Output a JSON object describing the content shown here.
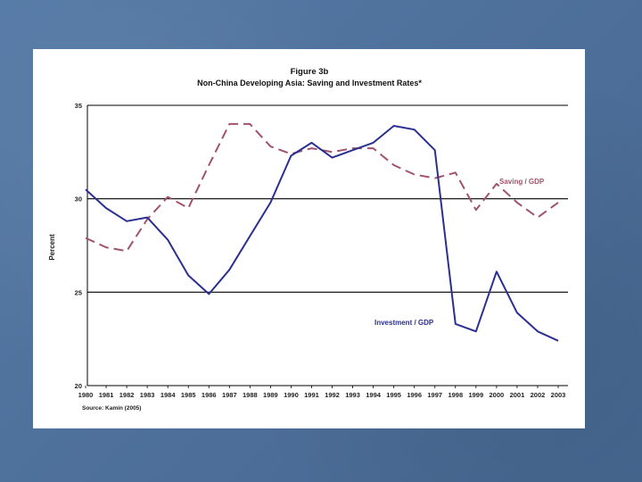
{
  "chart_data": {
    "type": "line",
    "title": "Figure 3b",
    "subtitle": "Non-China Developing Asia: Saving and Investment Rates*",
    "ylabel": "Percent",
    "xlabel": "",
    "ylim": [
      20,
      35
    ],
    "yticks": [
      20,
      25,
      30,
      35
    ],
    "gridlines": [
      25,
      30,
      35
    ],
    "categories": [
      "1980",
      "1981",
      "1982",
      "1983",
      "1984",
      "1985",
      "1986",
      "1987",
      "1988",
      "1989",
      "1990",
      "1991",
      "1992",
      "1993",
      "1994",
      "1995",
      "1996",
      "1997",
      "1998",
      "1999",
      "2000",
      "2001",
      "2002",
      "2003"
    ],
    "series": [
      {
        "name": "Saving / GDP",
        "color": "#a0526e",
        "style": "dashed",
        "values": [
          27.9,
          27.4,
          27.2,
          28.9,
          30.1,
          29.5,
          31.8,
          34.0,
          34.0,
          32.8,
          32.4,
          32.7,
          32.5,
          32.7,
          32.7,
          31.8,
          31.3,
          31.1,
          31.4,
          29.4,
          30.8,
          29.8,
          29.0,
          29.8
        ]
      },
      {
        "name": "Investment / GDP",
        "color": "#2b2f8f",
        "style": "solid",
        "values": [
          30.5,
          29.5,
          28.8,
          29.0,
          27.8,
          25.9,
          24.9,
          26.2,
          28.0,
          29.8,
          32.3,
          33.0,
          32.2,
          32.6,
          33.0,
          33.9,
          33.7,
          32.6,
          23.3,
          22.9,
          26.1,
          23.9,
          22.9,
          22.4
        ]
      }
    ],
    "source": "Source: Kamin (2005)"
  }
}
